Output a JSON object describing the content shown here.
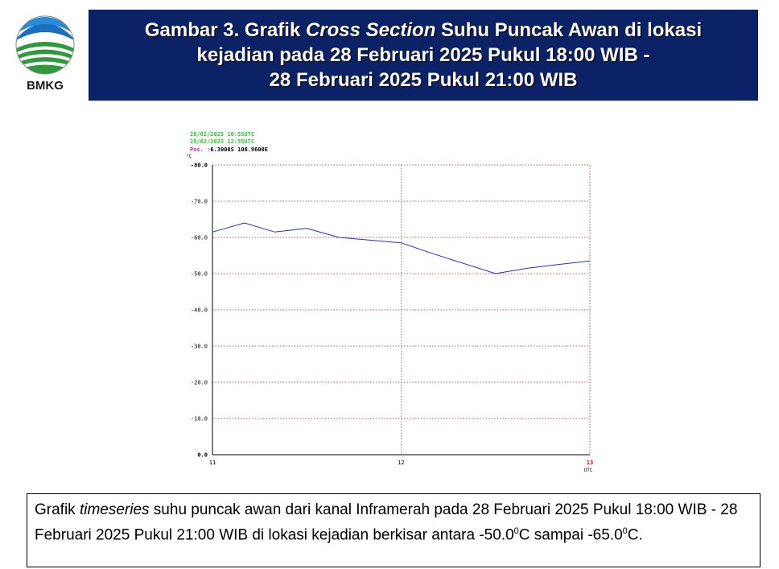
{
  "logo": {
    "text": "BMKG"
  },
  "title": {
    "part1": "Gambar 3. Grafik ",
    "italic": "Cross Section",
    "part2": " Suhu Puncak Awan di lokasi",
    "line2": "kejadian pada 28 Februari 2025 Pukul 18:00 WIB -",
    "line3": "28 Februari 2025 Pukul 21:00 WIB"
  },
  "chart_info": {
    "start_time": "28/02/2025 10:55UTC",
    "end_time": "28/02/2025 12:55UTC",
    "pos_label": "Pos. :",
    "pos_value": "6.3000S 106.9600E",
    "unit": "°C",
    "x_unit": "UTC"
  },
  "colors": {
    "title_bg": "#0b2366",
    "line": "#2a2ad0",
    "grid": "#b22222",
    "start_time": "#22cc22",
    "end_time": "#22cc22",
    "pos_label": "#cc22cc",
    "x_end": "#cc0000"
  },
  "chart_data": {
    "type": "line",
    "x_label": "UTC",
    "y_unit": "°C",
    "xlim": [
      11,
      13
    ],
    "ylim": [
      0,
      -80
    ],
    "y_ticks": [
      0.0,
      -10.0,
      -20.0,
      -30.0,
      -40.0,
      -50.0,
      -60.0,
      -70.0,
      -80.0
    ],
    "y_tick_labels": [
      "0.0",
      "-10.0",
      "-20.0",
      "-30.0",
      "-40.0",
      "-50.0",
      "-60.0",
      "-70.0",
      "-80.0"
    ],
    "x_ticks": [
      11,
      12,
      13
    ],
    "x_tick_labels": [
      "11",
      "12",
      "13"
    ],
    "grid": true,
    "series": [
      {
        "x": [
          11.0,
          11.17,
          11.33,
          11.5,
          11.67,
          12.0,
          12.17,
          12.5,
          12.67,
          12.83,
          13.0
        ],
        "y": [
          -61.5,
          -64.0,
          -61.5,
          -62.5,
          -60.0,
          -58.5,
          -55.5,
          -50.0,
          -51.5,
          -52.5,
          -53.5
        ]
      }
    ]
  },
  "description": {
    "text1": "Grafik ",
    "italic": "timeseries",
    "text2": " suhu puncak awan dari kanal Inframerah pada 28 Februari 2025 Pukul 18:00 WIB - 28 Februari 2025 Pukul 21:00 WIB di lokasi kejadian berkisar antara -50.0",
    "sup1": "0",
    "text3": "C sampai -65.0",
    "sup2": "0",
    "text4": "C."
  }
}
